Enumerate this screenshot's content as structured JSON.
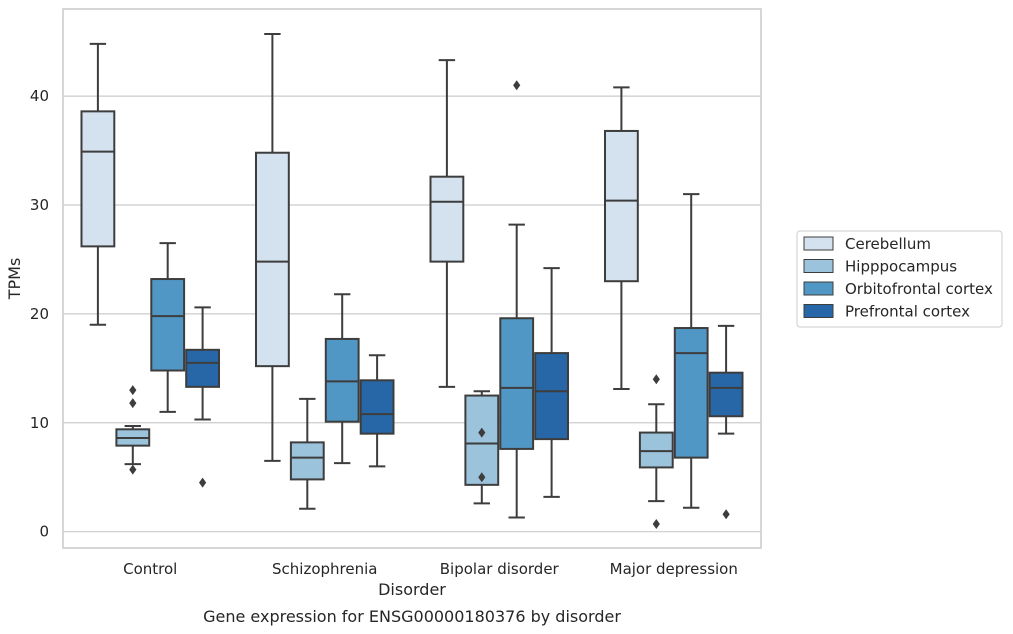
{
  "chart_data": {
    "type": "box",
    "title": "",
    "caption": "Gene expression for ENSG00000180376 by disorder",
    "xlabel": "Disorder",
    "ylabel": "TPMs",
    "ylim": [
      -1.5,
      48.0
    ],
    "yticks": [
      0,
      10,
      20,
      30,
      40
    ],
    "grid": "horizontal",
    "legend_position": "right",
    "categories": [
      "Control",
      "Schizophrenia",
      "Bipolar disorder",
      "Major depression"
    ],
    "series": [
      {
        "name": "Cerebellum",
        "color": "#d4e2f0",
        "boxes": [
          {
            "whislo": 19.0,
            "q1": 26.2,
            "med": 34.9,
            "q3": 38.6,
            "whishi": 44.8,
            "fliers": []
          },
          {
            "whislo": 6.5,
            "q1": 15.2,
            "med": 24.8,
            "q3": 34.8,
            "whishi": 45.7,
            "fliers": []
          },
          {
            "whislo": 13.3,
            "q1": 24.8,
            "med": 30.3,
            "q3": 32.6,
            "whishi": 43.3,
            "fliers": []
          },
          {
            "whislo": 13.1,
            "q1": 23.0,
            "med": 30.4,
            "q3": 36.8,
            "whishi": 40.8,
            "fliers": []
          }
        ]
      },
      {
        "name": "Hipppocampus",
        "color": "#9cc3dc",
        "boxes": [
          {
            "whislo": 6.2,
            "q1": 7.9,
            "med": 8.6,
            "q3": 9.4,
            "whishi": 9.7,
            "fliers": [
              13.0,
              11.8,
              5.7
            ]
          },
          {
            "whislo": 2.1,
            "q1": 4.8,
            "med": 6.8,
            "q3": 8.2,
            "whishi": 12.2,
            "fliers": []
          },
          {
            "whislo": 2.6,
            "q1": 4.3,
            "med": 8.1,
            "q3": 12.5,
            "whishi": 12.9,
            "fliers": [
              9.1,
              5.0
            ]
          },
          {
            "whislo": 2.8,
            "q1": 5.9,
            "med": 7.4,
            "q3": 9.1,
            "whishi": 11.7,
            "fliers": [
              14.0,
              0.7
            ]
          }
        ]
      },
      {
        "name": "Orbitofrontal cortex",
        "color": "#5197c5",
        "boxes": [
          {
            "whislo": 11.0,
            "q1": 14.8,
            "med": 19.8,
            "q3": 23.2,
            "whishi": 26.5,
            "fliers": []
          },
          {
            "whislo": 6.3,
            "q1": 10.1,
            "med": 13.8,
            "q3": 17.7,
            "whishi": 21.8,
            "fliers": []
          },
          {
            "whislo": 1.3,
            "q1": 7.6,
            "med": 13.2,
            "q3": 19.6,
            "whishi": 28.2,
            "fliers": [
              41.0
            ]
          },
          {
            "whislo": 2.2,
            "q1": 6.8,
            "med": 16.4,
            "q3": 18.7,
            "whishi": 31.0,
            "fliers": []
          }
        ]
      },
      {
        "name": "Prefrontal cortex",
        "color": "#2767a8",
        "boxes": [
          {
            "whislo": 10.3,
            "q1": 13.3,
            "med": 15.5,
            "q3": 16.7,
            "whishi": 20.6,
            "fliers": [
              4.5
            ]
          },
          {
            "whislo": 6.0,
            "q1": 9.0,
            "med": 10.8,
            "q3": 13.9,
            "whishi": 16.2,
            "fliers": []
          },
          {
            "whislo": 3.2,
            "q1": 8.5,
            "med": 12.9,
            "q3": 16.4,
            "whishi": 24.2,
            "fliers": []
          },
          {
            "whislo": 9.0,
            "q1": 10.6,
            "med": 13.2,
            "q3": 14.6,
            "whishi": 18.9,
            "fliers": [
              1.6
            ]
          }
        ]
      }
    ]
  }
}
